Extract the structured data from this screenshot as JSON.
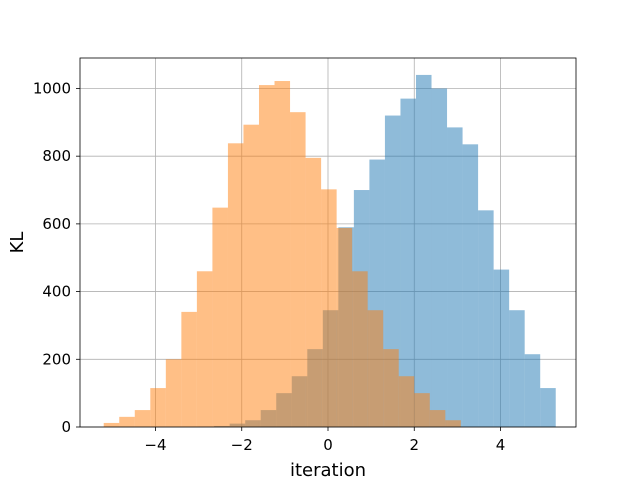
{
  "chart_data": {
    "type": "bar",
    "title": "",
    "xlabel": "iteration",
    "ylabel": "KL",
    "xlim": [
      -5.75,
      5.75
    ],
    "ylim": [
      0,
      1090
    ],
    "xticks": [
      -4,
      -2,
      0,
      2,
      4
    ],
    "xtick_labels": [
      "−4",
      "−2",
      "0",
      "2",
      "4"
    ],
    "yticks": [
      0,
      200,
      400,
      600,
      800,
      1000
    ],
    "ytick_labels": [
      "0",
      "200",
      "400",
      "600",
      "800",
      "1000"
    ],
    "grid": true,
    "bin_width": 0.36,
    "series": [
      {
        "color": "#1f77b4",
        "alpha": 0.5,
        "bins": [
          {
            "x0": -3.0,
            "count": 1
          },
          {
            "x0": -2.64,
            "count": 3
          },
          {
            "x0": -2.28,
            "count": 10
          },
          {
            "x0": -1.92,
            "count": 20
          },
          {
            "x0": -1.56,
            "count": 50
          },
          {
            "x0": -1.2,
            "count": 100
          },
          {
            "x0": -0.84,
            "count": 150
          },
          {
            "x0": -0.48,
            "count": 230
          },
          {
            "x0": -0.12,
            "count": 345
          },
          {
            "x0": 0.24,
            "count": 590
          },
          {
            "x0": 0.6,
            "count": 700
          },
          {
            "x0": 0.96,
            "count": 790
          },
          {
            "x0": 1.32,
            "count": 920
          },
          {
            "x0": 1.68,
            "count": 970
          },
          {
            "x0": 2.04,
            "count": 1040
          },
          {
            "x0": 2.4,
            "count": 1000
          },
          {
            "x0": 2.76,
            "count": 885
          },
          {
            "x0": 3.12,
            "count": 835
          },
          {
            "x0": 3.48,
            "count": 640
          },
          {
            "x0": 3.84,
            "count": 465
          },
          {
            "x0": 4.2,
            "count": 345
          },
          {
            "x0": 4.56,
            "count": 215
          },
          {
            "x0": 4.92,
            "count": 115
          }
        ]
      },
      {
        "color": "#ff7f0e",
        "alpha": 0.5,
        "bins": [
          {
            "x0": -5.2,
            "count": 12
          },
          {
            "x0": -4.84,
            "count": 30
          },
          {
            "x0": -4.48,
            "count": 50
          },
          {
            "x0": -4.12,
            "count": 115
          },
          {
            "x0": -3.76,
            "count": 200
          },
          {
            "x0": -3.4,
            "count": 340
          },
          {
            "x0": -3.04,
            "count": 460
          },
          {
            "x0": -2.68,
            "count": 648
          },
          {
            "x0": -2.32,
            "count": 838
          },
          {
            "x0": -1.96,
            "count": 893
          },
          {
            "x0": -1.6,
            "count": 1010
          },
          {
            "x0": -1.24,
            "count": 1022
          },
          {
            "x0": -0.88,
            "count": 930
          },
          {
            "x0": -0.52,
            "count": 795
          },
          {
            "x0": -0.16,
            "count": 702
          },
          {
            "x0": 0.2,
            "count": 588
          },
          {
            "x0": 0.56,
            "count": 460
          },
          {
            "x0": 0.92,
            "count": 345
          },
          {
            "x0": 1.28,
            "count": 230
          },
          {
            "x0": 1.64,
            "count": 150
          },
          {
            "x0": 2.0,
            "count": 100
          },
          {
            "x0": 2.36,
            "count": 50
          },
          {
            "x0": 2.72,
            "count": 20
          }
        ]
      }
    ]
  }
}
